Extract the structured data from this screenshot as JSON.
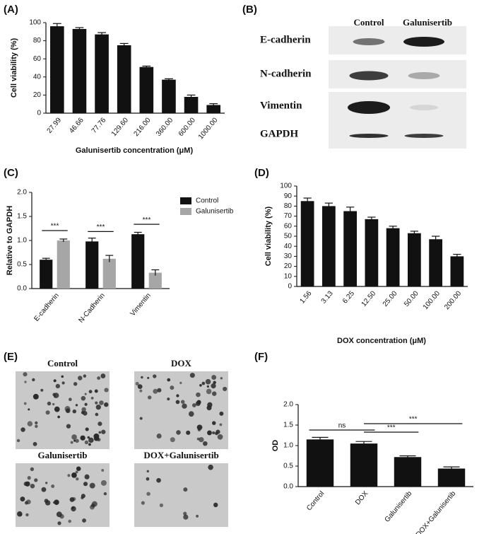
{
  "chart_data": [
    {
      "type": "bar",
      "panel": "(A)",
      "ylabel": "Cell viability (%)",
      "xlabel": "Galunisertib concentration (μM)",
      "categories": [
        "27.99",
        "46.66",
        "77.76",
        "129.60",
        "216.00",
        "360.00",
        "600.00",
        "1000.00"
      ],
      "values": [
        96,
        93,
        87,
        75,
        51,
        37,
        18,
        9
      ],
      "errors": [
        3,
        1.5,
        2,
        2,
        1,
        1,
        2,
        1.5
      ],
      "color": "#111111",
      "ylim": [
        0,
        100
      ],
      "yticks": [
        0,
        20,
        40,
        60,
        80,
        100
      ]
    },
    {
      "type": "bar",
      "panel": "(C)",
      "ylabel": "Relative to GAPDH",
      "categories": [
        "E-cadherin",
        "N-Cadherin",
        "Vimentin"
      ],
      "series": [
        {
          "name": "Control",
          "color": "#111111",
          "values": [
            0.6,
            0.98,
            1.13
          ],
          "errors": [
            0.03,
            0.07,
            0.04
          ]
        },
        {
          "name": "Galunisertib",
          "color": "#a6a6a6",
          "values": [
            1.0,
            0.62,
            0.33
          ],
          "errors": [
            0.03,
            0.07,
            0.06
          ]
        }
      ],
      "ylim": [
        0,
        2
      ],
      "yticks": [
        {
          "value": 0,
          "label": "0.0"
        },
        {
          "value": 0.5,
          "label": "0.5"
        },
        {
          "value": 1,
          "label": "1.0"
        },
        {
          "value": 1.5,
          "label": "1.5"
        },
        {
          "value": 2,
          "label": "2.0"
        }
      ],
      "annotations": [
        "***",
        "***",
        "***"
      ],
      "legend": "upper-right"
    },
    {
      "type": "bar",
      "panel": "(D)",
      "ylabel": "Cell viability (%)",
      "xlabel": "DOX concentration (μM)",
      "categories": [
        "1.56",
        "3.13",
        "6.25",
        "12.50",
        "25.00",
        "50.00",
        "100.00",
        "200.00"
      ],
      "values": [
        85,
        80,
        75,
        67,
        58,
        53,
        47,
        30
      ],
      "errors": [
        3,
        3,
        4,
        2,
        2,
        2,
        3,
        2
      ],
      "color": "#111111",
      "ylim": [
        0,
        100
      ],
      "yticks": [
        0,
        10,
        20,
        30,
        40,
        50,
        60,
        70,
        80,
        90,
        100
      ]
    },
    {
      "type": "bar",
      "panel": "(F)",
      "ylabel": "OD",
      "categories": [
        "Control",
        "DOX",
        "Galunisertib",
        "DOX+Galunisertib"
      ],
      "values": [
        1.15,
        1.05,
        0.72,
        0.44
      ],
      "errors": [
        0.05,
        0.05,
        0.03,
        0.04
      ],
      "color": "#111111",
      "ylim": [
        0,
        2
      ],
      "yticks": [
        {
          "value": 0,
          "label": "0.0"
        },
        {
          "value": 0.5,
          "label": "0.5"
        },
        {
          "value": 1,
          "label": "1.0"
        },
        {
          "value": 1.5,
          "label": "1.5"
        },
        {
          "value": 2,
          "label": "2.0"
        }
      ],
      "annotations": [
        "ns",
        "***",
        "***"
      ]
    }
  ],
  "blot": {
    "panel": "(B)",
    "columns": [
      "Control",
      "Galunisertib"
    ],
    "rows": [
      "E-cadherin",
      "N-cadherin",
      "Vimentin",
      "GAPDH"
    ]
  },
  "micrographs": {
    "panel": "(E)",
    "images": [
      "Control",
      "DOX",
      "Galunisertib",
      "DOX+Galunisertib"
    ]
  }
}
